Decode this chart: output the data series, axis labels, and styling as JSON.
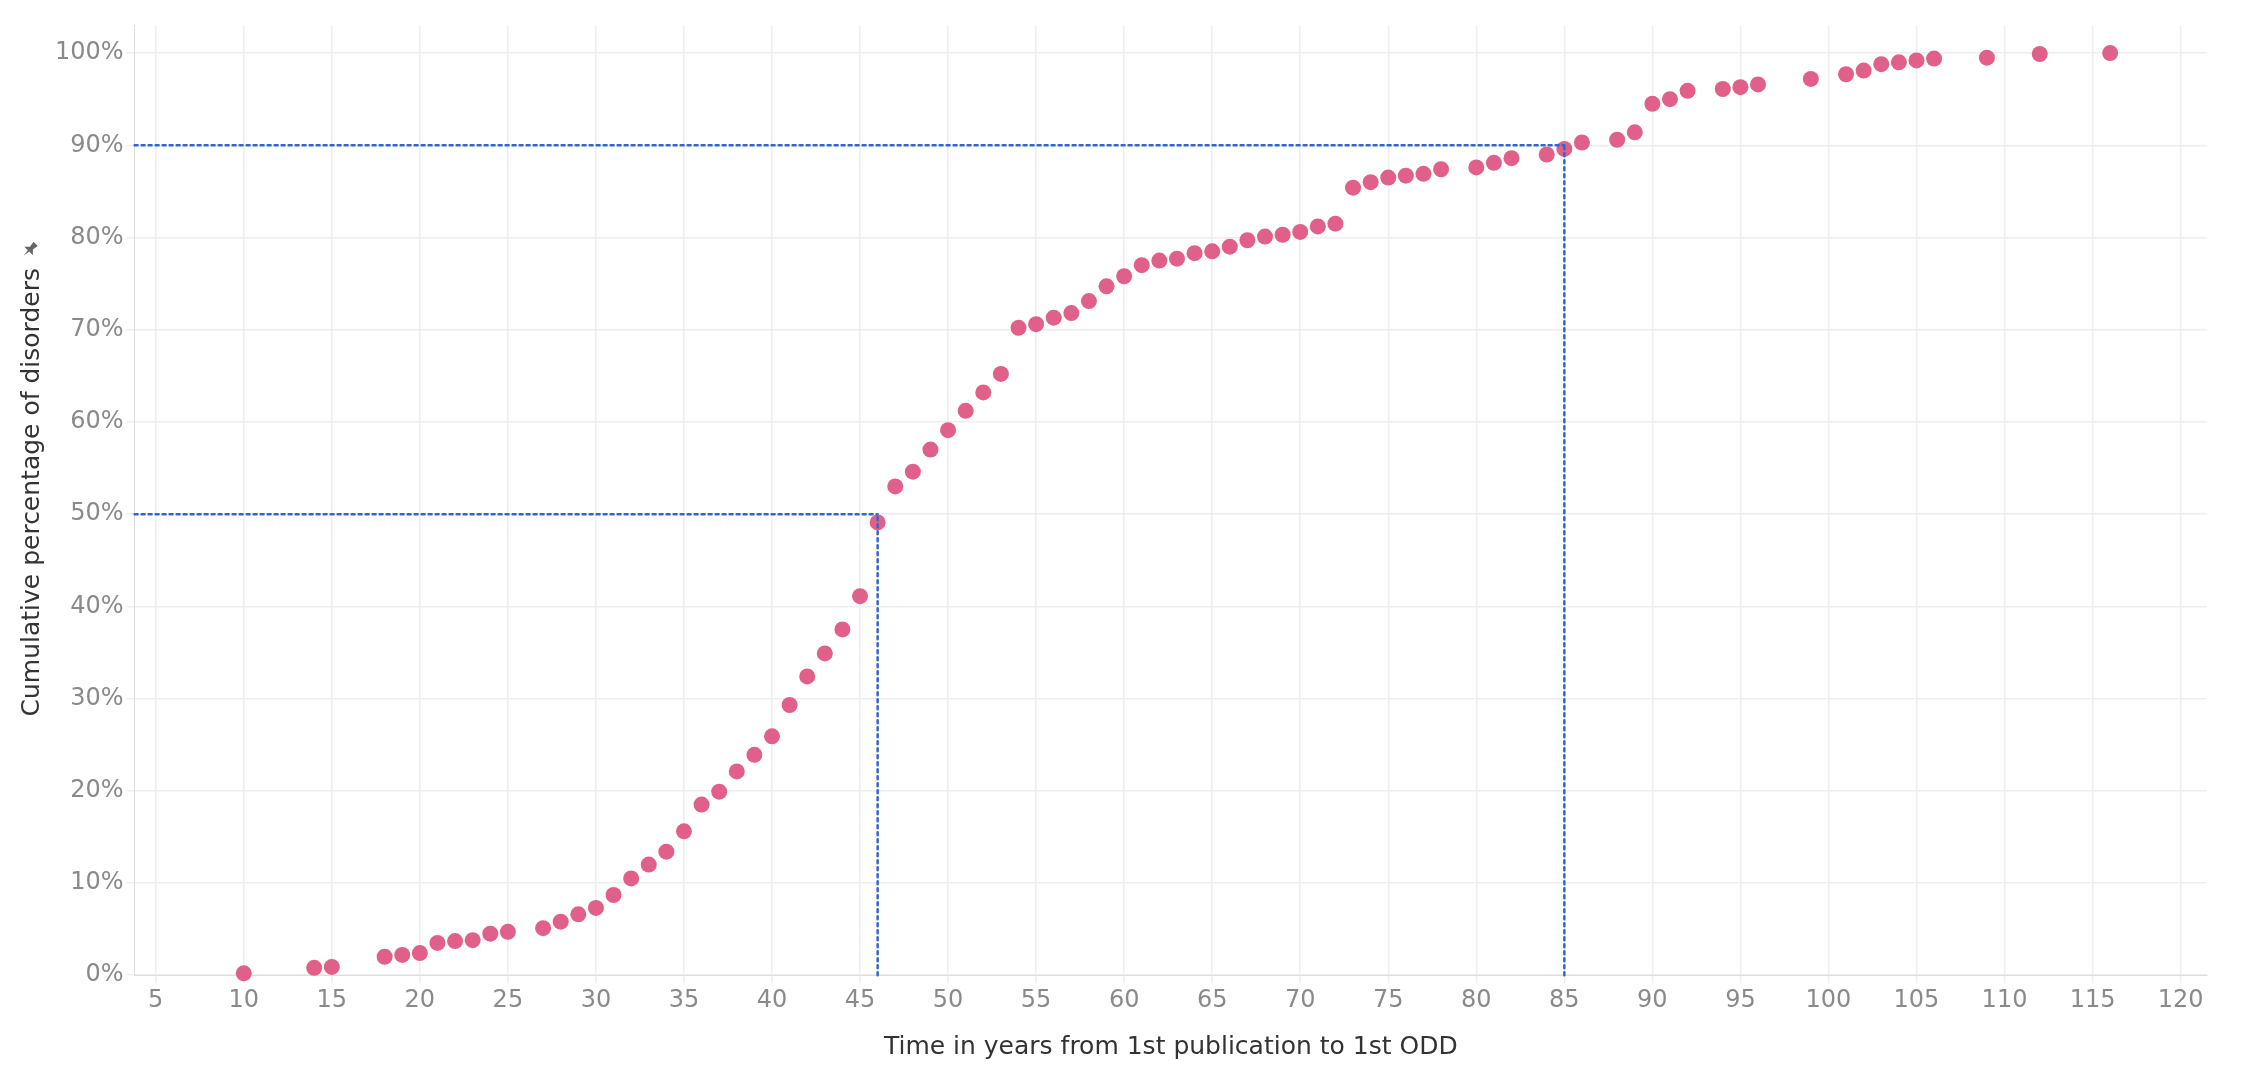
{
  "chart_data": {
    "type": "scatter",
    "xlabel": "Time in years from 1st publication to 1st ODD",
    "ylabel": "Cumulative percentage of disorders",
    "xlim": [
      3.8,
      121.5
    ],
    "xticks": [
      5,
      10,
      15,
      20,
      25,
      30,
      35,
      40,
      45,
      50,
      55,
      60,
      65,
      70,
      75,
      80,
      85,
      90,
      95,
      100,
      105,
      110,
      115,
      120
    ],
    "ylim": [
      0,
      103
    ],
    "yticks": [
      {
        "value": 0,
        "label": "0%"
      },
      {
        "value": 10,
        "label": "10%"
      },
      {
        "value": 20,
        "label": "20%"
      },
      {
        "value": 30,
        "label": "30%"
      },
      {
        "value": 40,
        "label": "40%"
      },
      {
        "value": 50,
        "label": "50%"
      },
      {
        "value": 60,
        "label": "60%"
      },
      {
        "value": 70,
        "label": "70%"
      },
      {
        "value": 80,
        "label": "80%"
      },
      {
        "value": 90,
        "label": "90%"
      },
      {
        "value": 100,
        "label": "100%"
      }
    ],
    "grid": true,
    "marker": "circle",
    "series": [
      {
        "color": "#e0608a",
        "x": [
          10,
          14,
          15,
          18,
          19,
          20,
          21,
          22,
          23,
          24,
          25,
          27,
          28,
          29,
          30,
          31,
          32,
          33,
          34,
          35,
          36,
          37,
          38,
          39,
          40,
          41,
          42,
          43,
          44,
          45,
          46,
          47,
          48,
          49,
          50,
          51,
          52,
          53,
          54,
          55,
          56,
          57,
          58,
          59,
          60,
          61,
          62,
          63,
          64,
          65,
          66,
          67,
          68,
          69,
          70,
          71,
          72,
          73,
          74,
          75,
          76,
          77,
          78,
          80,
          81,
          82,
          84,
          85,
          86,
          88,
          89,
          90,
          91,
          92,
          94,
          95,
          96,
          99,
          101,
          102,
          103,
          104,
          105,
          106,
          109,
          112,
          116
        ],
        "values": [
          0.2,
          0.8,
          0.9,
          2.0,
          2.2,
          2.4,
          3.5,
          3.7,
          3.8,
          4.5,
          4.7,
          5.1,
          5.8,
          6.6,
          7.3,
          8.7,
          10.5,
          12.0,
          13.4,
          15.6,
          18.5,
          19.9,
          22.1,
          23.9,
          25.9,
          29.3,
          32.4,
          34.9,
          37.5,
          41.1,
          49.1,
          53.0,
          54.6,
          57.0,
          59.1,
          61.2,
          63.2,
          65.2,
          70.2,
          70.6,
          71.3,
          71.8,
          73.1,
          74.7,
          75.8,
          77.0,
          77.5,
          77.7,
          78.3,
          78.5,
          79.0,
          79.7,
          80.1,
          80.3,
          80.6,
          81.2,
          81.5,
          85.4,
          86.0,
          86.5,
          86.7,
          86.9,
          87.4,
          87.6,
          88.1,
          88.6,
          89.0,
          89.6,
          90.3,
          90.6,
          91.4,
          94.5,
          95.0,
          95.9,
          96.1,
          96.3,
          96.6,
          97.2,
          97.7,
          98.1,
          98.8,
          99.0,
          99.2,
          99.4,
          99.5,
          99.9,
          100
        ]
      }
    ],
    "ref_lines": [
      {
        "axis": "y",
        "value": 50,
        "color": "#3366cc",
        "line_style": "dotted"
      },
      {
        "axis": "y",
        "value": 90,
        "color": "#3366cc",
        "line_style": "dotted"
      },
      {
        "axis": "x",
        "value": 46,
        "color": "#3366cc",
        "line_style": "dotted"
      },
      {
        "axis": "x",
        "value": 85,
        "color": "#3366cc",
        "line_style": "dotted"
      }
    ]
  }
}
